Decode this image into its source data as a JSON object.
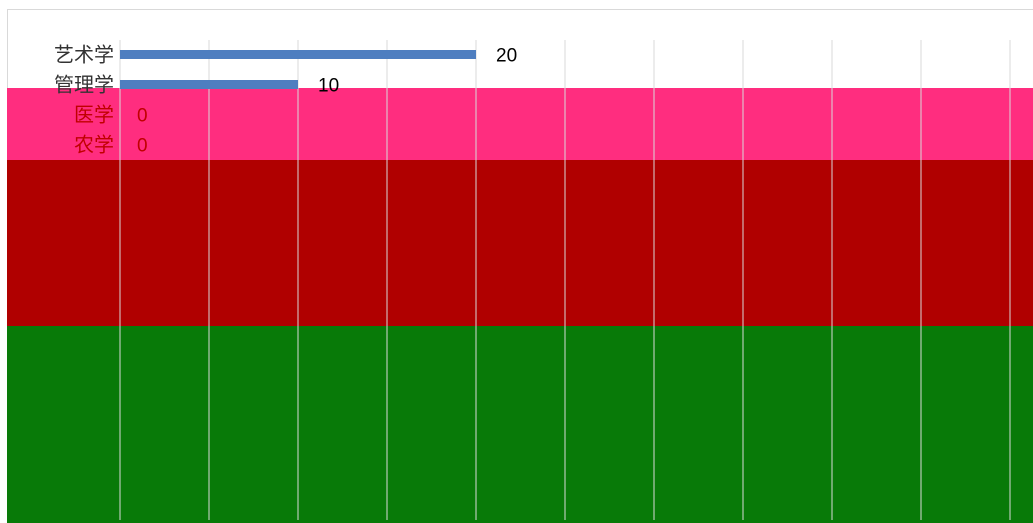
{
  "chart_data": {
    "type": "bar",
    "orientation": "horizontal",
    "categories": [
      "艺术学",
      "管理学",
      "医学",
      "农学"
    ],
    "values": [
      20,
      10,
      0,
      0
    ],
    "xlim": [
      0,
      100
    ],
    "grid": true,
    "title": "",
    "xlabel": "",
    "ylabel": ""
  },
  "colors": {
    "bar": "#4e7ec0",
    "gridline": "#d9d9d9",
    "label_text": "#333333",
    "value_text": "#000000",
    "overlay_pink": "#ff2d7f",
    "overlay_red": "#b00000",
    "overlay_green": "#087a08",
    "overlay_label_text": "#c00000"
  }
}
